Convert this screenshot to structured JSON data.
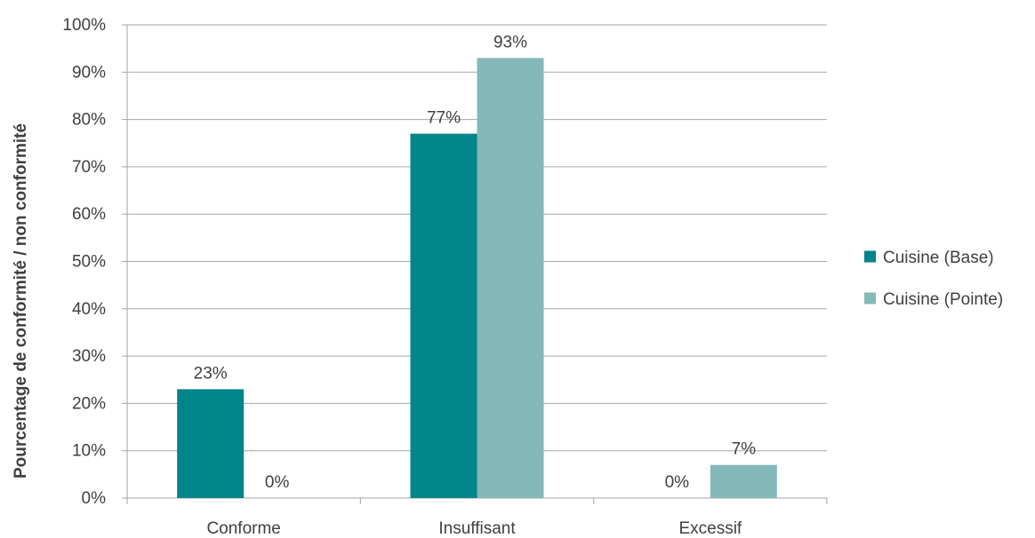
{
  "chart_data": {
    "type": "bar",
    "title": "",
    "xlabel": "",
    "ylabel": "Pourcentage de conformité / non conformité",
    "ylim": [
      0,
      100
    ],
    "yticks": [
      "0%",
      "10%",
      "20%",
      "30%",
      "40%",
      "50%",
      "60%",
      "70%",
      "80%",
      "90%",
      "100%"
    ],
    "categories": [
      "Conforme",
      "Insuffisant",
      "Excessif"
    ],
    "series": [
      {
        "name": "Cuisine (Base)",
        "color": "#00858A",
        "values": [
          23,
          77,
          0
        ],
        "labels": [
          "23%",
          "77%",
          "0%"
        ]
      },
      {
        "name": "Cuisine (Pointe)",
        "color": "#85B8B9",
        "values": [
          0,
          93,
          7
        ],
        "labels": [
          "0%",
          "93%",
          "7%"
        ]
      }
    ],
    "grid": true,
    "legend": "right"
  }
}
